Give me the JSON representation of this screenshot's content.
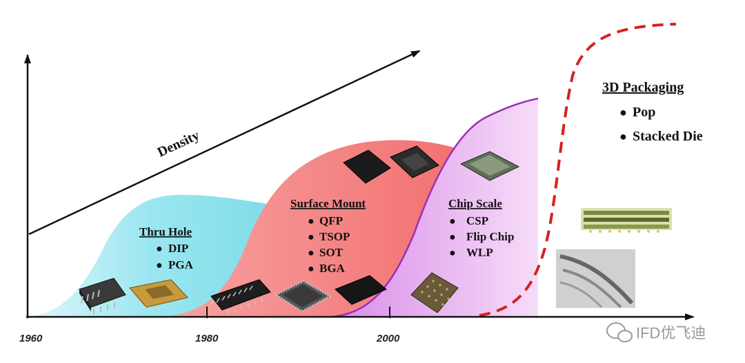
{
  "x_axis_ticks": [
    "1960",
    "1980",
    "2000"
  ],
  "density_label": "Density",
  "eras": [
    {
      "title": "Thru Hole",
      "items": [
        "DIP",
        "PGA"
      ]
    },
    {
      "title": "Surface Mount",
      "items": [
        "QFP",
        "TSOP",
        "SOT",
        "BGA"
      ]
    },
    {
      "title": "Chip Scale",
      "items": [
        "CSP",
        "Flip Chip",
        "WLP"
      ]
    },
    {
      "title": "3D Packaging",
      "items": [
        "Pop",
        "Stacked Die"
      ]
    }
  ],
  "bullet": "●",
  "watermark": "IFD优飞迪",
  "colors": {
    "thru_hole": "#8fe3ee",
    "surface_mount": "#f47c7c",
    "chip_scale": "#e7a6f0",
    "packaging_3d_curve": "#d62020",
    "axis": "#111111"
  },
  "icons": [
    "wechat-logo-icon"
  ]
}
